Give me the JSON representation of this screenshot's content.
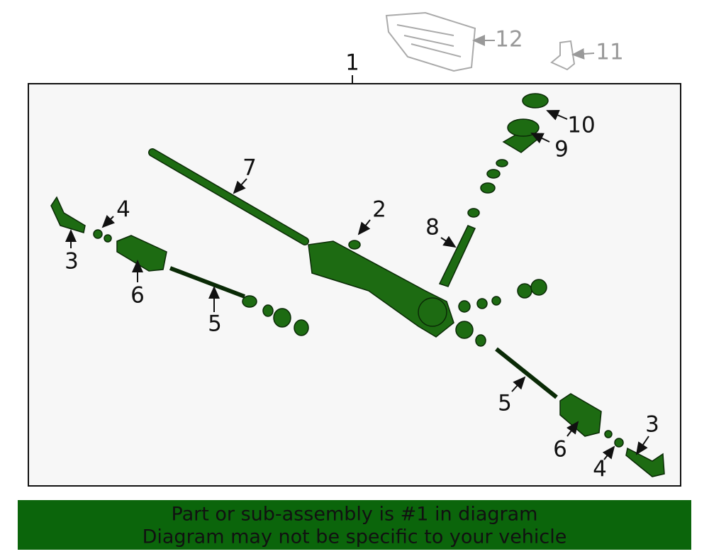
{
  "callouts": [
    {
      "label": "1"
    },
    {
      "label": "12"
    },
    {
      "label": "11"
    },
    {
      "label": "10"
    },
    {
      "label": "9"
    },
    {
      "label": "7"
    },
    {
      "label": "2"
    },
    {
      "label": "8"
    },
    {
      "label": "4"
    },
    {
      "label": "3"
    },
    {
      "label": "6"
    },
    {
      "label": "5"
    },
    {
      "label": "5"
    },
    {
      "label": "6"
    },
    {
      "label": "3"
    },
    {
      "label": "4"
    }
  ],
  "banner": {
    "lines": [
      "Part or sub-assembly is #1 in diagram",
      "Diagram may not be specific to your vehicle"
    ]
  }
}
